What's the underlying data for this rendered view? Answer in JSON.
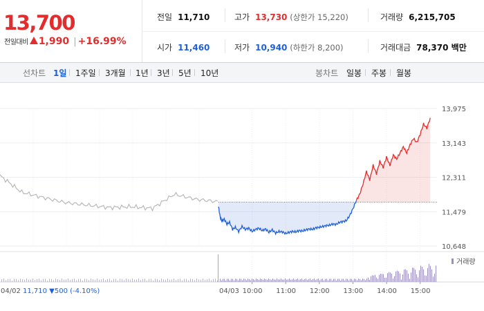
{
  "quote": {
    "price": "13,700",
    "change_label": "전일대비",
    "change": "1,990",
    "change_pct": "+16.99%",
    "stats": {
      "prev_close": {
        "label": "전일",
        "value": "11,710"
      },
      "open": {
        "label": "시가",
        "value": "11,460"
      },
      "high": {
        "label": "고가",
        "value": "13,730",
        "sub": "(상한가 15,220)"
      },
      "low": {
        "label": "저가",
        "value": "10,940",
        "sub": "(하한가 8,200)"
      },
      "volume": {
        "label": "거래량",
        "value": "6,215,705"
      },
      "amount": {
        "label": "거래대금",
        "value": "78,370 백만"
      }
    }
  },
  "tabs": {
    "line_label": "선차트",
    "line_tabs": [
      "1일",
      "1주일",
      "3개월",
      "1년",
      "3년",
      "5년",
      "10년"
    ],
    "active": "1일",
    "candle_label": "봉차트",
    "candle_tabs": [
      "일봉",
      "주봉",
      "월봉"
    ]
  },
  "colors": {
    "up": "#e12d2d",
    "down": "#1f5fd6",
    "prev": "#b8b8b8"
  },
  "chart_data": {
    "type": "line",
    "y_ticks": [
      "13,975",
      "13,143",
      "12,311",
      "11,479",
      "10,648"
    ],
    "ylim": [
      10648,
      13975
    ],
    "baseline": 11710,
    "x_ticks": [
      "04/03",
      "10:00",
      "11:00",
      "12:00",
      "13:00",
      "14:00",
      "15:00"
    ],
    "prev_day_label": "04/02",
    "prev_day_summary": {
      "close": "11,710",
      "change": "500",
      "pct": "(-4.10%)"
    },
    "volume_legend": "거래량",
    "prev_day": {
      "x": [
        0,
        0.1,
        0.2,
        0.3,
        0.4,
        0.5,
        0.6,
        0.7,
        0.8,
        0.9,
        1.0
      ],
      "y": [
        12350,
        11950,
        11820,
        11700,
        11640,
        11580,
        11600,
        11560,
        11900,
        11780,
        11720
      ]
    },
    "today": {
      "time": [
        9.0,
        9.05,
        9.1,
        9.17,
        9.25,
        9.33,
        9.42,
        9.5,
        9.6,
        9.7,
        9.8,
        9.9,
        10.0,
        10.1,
        10.2,
        10.3,
        10.4,
        10.5,
        10.6,
        10.7,
        10.8,
        10.9,
        11.0,
        11.1,
        11.2,
        11.3,
        11.4,
        11.5,
        11.6,
        11.7,
        11.8,
        11.9,
        12.0,
        12.1,
        12.2,
        12.3,
        12.4,
        12.5,
        12.6,
        12.7,
        12.8,
        12.9,
        13.0,
        13.1,
        13.2,
        13.3,
        13.4,
        13.5,
        13.6,
        13.7,
        13.8,
        13.9,
        14.0,
        14.1,
        14.2,
        14.3,
        14.4,
        14.5,
        14.6,
        14.7,
        14.8,
        14.9,
        15.0,
        15.1,
        15.2,
        15.3
      ],
      "price": [
        11600,
        11350,
        11250,
        11300,
        11180,
        11220,
        11050,
        11100,
        11000,
        11120,
        11050,
        11080,
        11000,
        11050,
        11080,
        11020,
        11060,
        10980,
        11040,
        10960,
        11000,
        10990,
        10950,
        10980,
        11000,
        10990,
        11020,
        11010,
        11040,
        11060,
        11050,
        11090,
        11100,
        11120,
        11140,
        11150,
        11180,
        11170,
        11220,
        11240,
        11260,
        11380,
        11550,
        11750,
        11900,
        12150,
        12450,
        12250,
        12600,
        12400,
        12700,
        12550,
        12800,
        12600,
        12850,
        12750,
        12900,
        13050,
        12900,
        13100,
        13250,
        13150,
        13350,
        13600,
        13500,
        13750
      ]
    }
  }
}
